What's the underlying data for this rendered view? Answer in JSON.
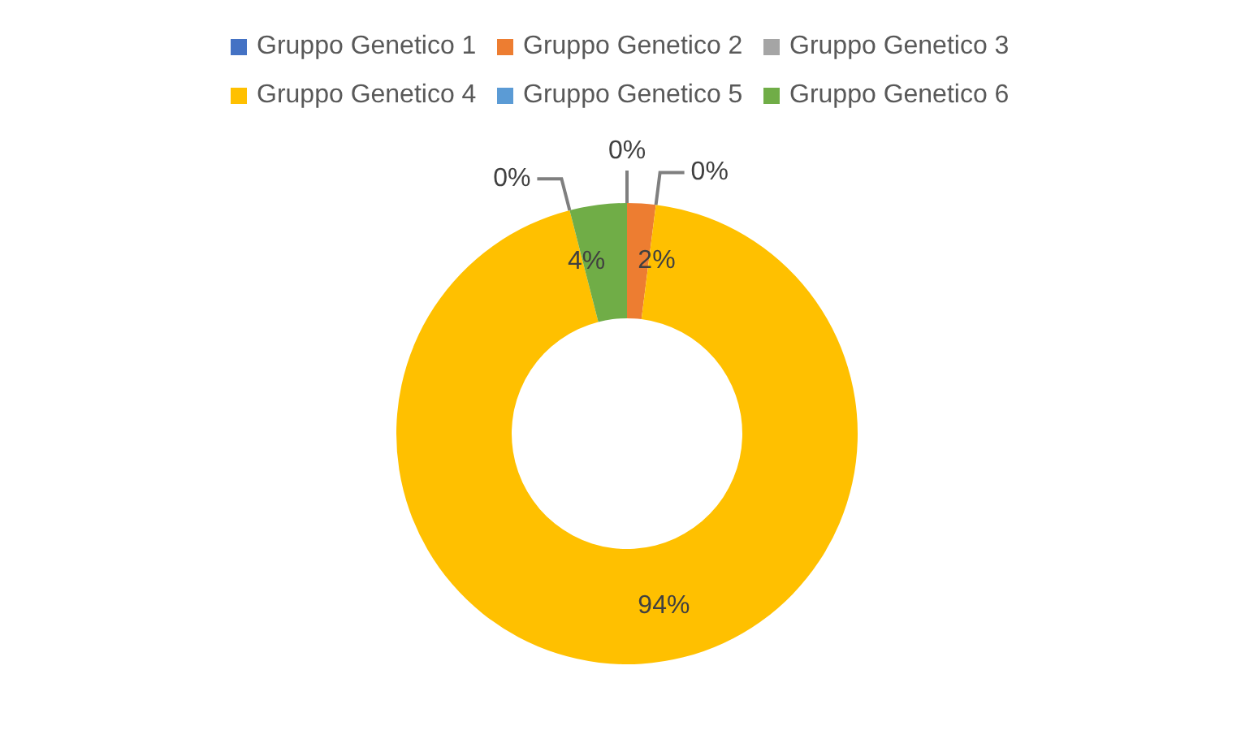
{
  "chart_data": {
    "type": "donut",
    "categories": [
      "Gruppo Genetico 1",
      "Gruppo Genetico 2",
      "Gruppo Genetico 3",
      "Gruppo Genetico 4",
      "Gruppo Genetico 5",
      "Gruppo Genetico 6"
    ],
    "values": [
      0,
      2,
      0,
      94,
      0,
      4
    ],
    "colors": [
      "#4472c4",
      "#ed7d31",
      "#a5a5a5",
      "#ffc000",
      "#5b9bd5",
      "#70ad47"
    ],
    "value_labels": [
      "0%",
      "2%",
      "0%",
      "94%",
      "0%",
      "4%"
    ],
    "legend": "top"
  }
}
